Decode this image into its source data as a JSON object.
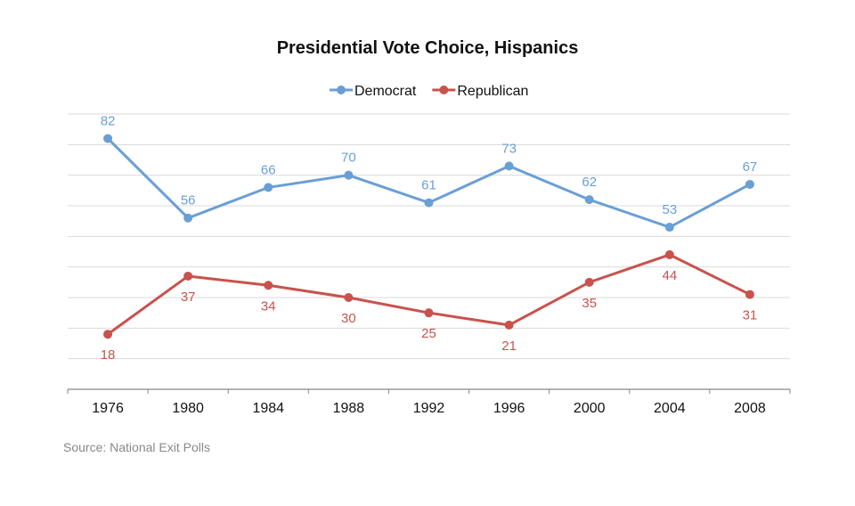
{
  "chart_data": {
    "type": "line",
    "title": "Presidential Vote Choice, Hispanics",
    "categories": [
      "1976",
      "1980",
      "1984",
      "1988",
      "1992",
      "1996",
      "2000",
      "2004",
      "2008"
    ],
    "series": [
      {
        "name": "Democrat",
        "color": "#6a9fd4",
        "values": [
          82,
          56,
          66,
          70,
          61,
          73,
          62,
          53,
          67
        ]
      },
      {
        "name": "Republican",
        "color": "#c9524d",
        "values": [
          18,
          37,
          34,
          30,
          25,
          21,
          35,
          44,
          31
        ]
      }
    ],
    "ylim": [
      0,
      90
    ],
    "grid": true,
    "data_labels": true,
    "legend": "top",
    "source": "Source: National Exit Polls"
  }
}
